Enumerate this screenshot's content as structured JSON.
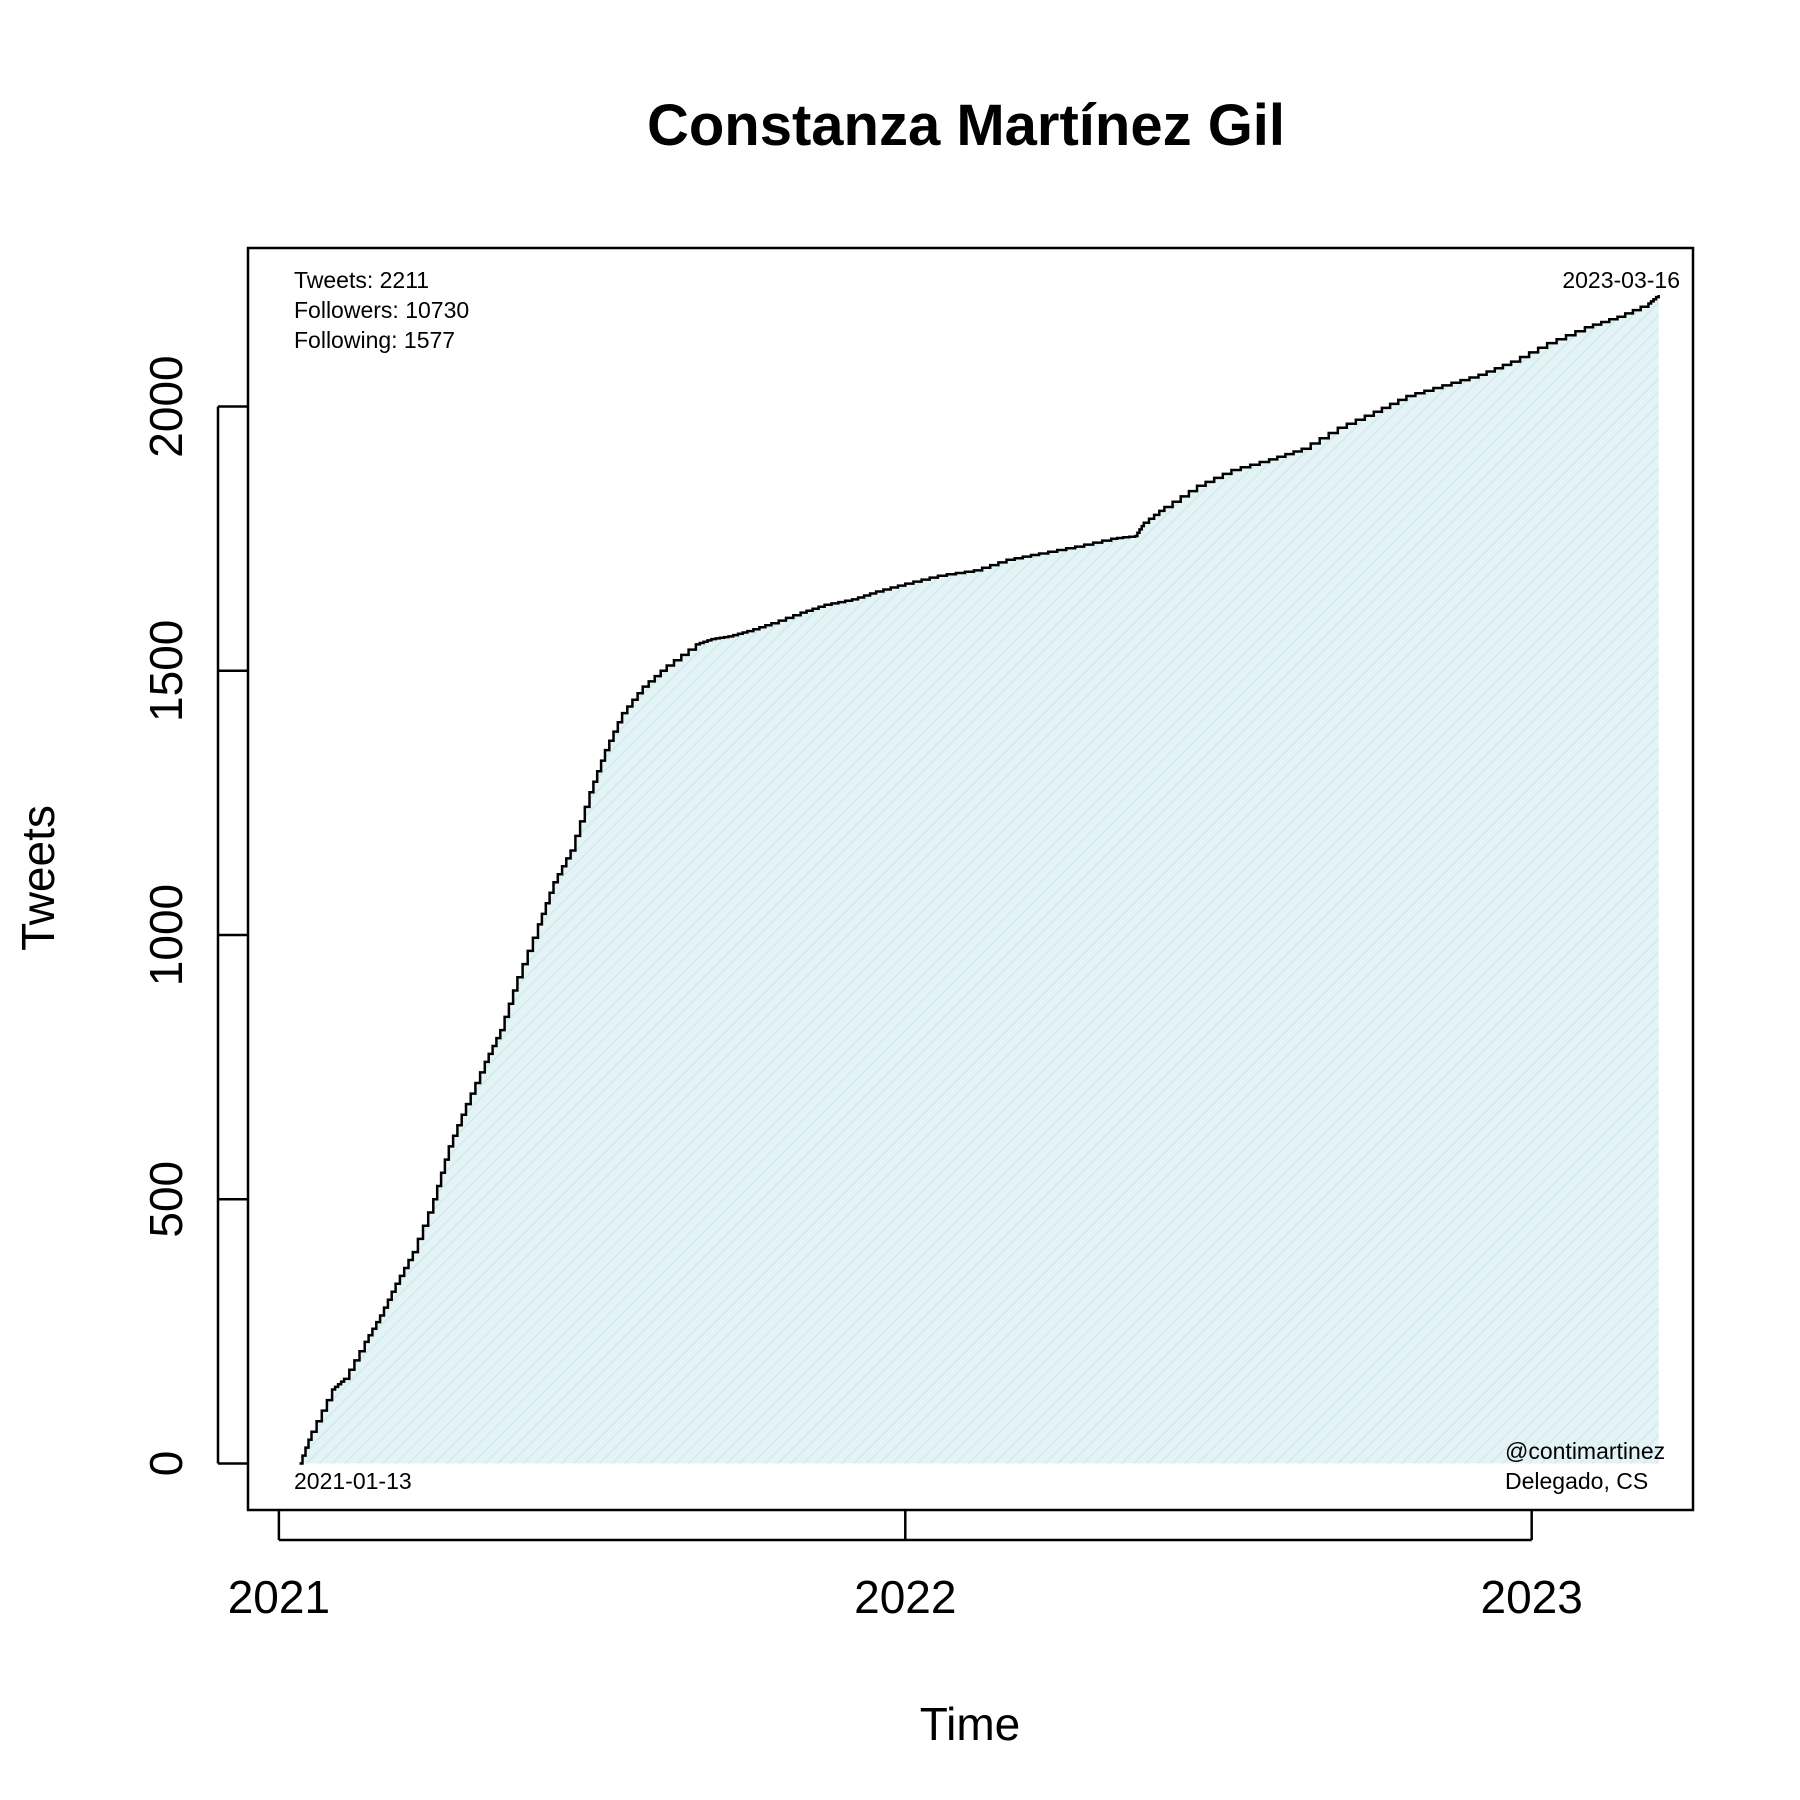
{
  "chart_data": {
    "type": "area",
    "title": "Constanza Martínez Gil",
    "xlabel": "Time",
    "ylabel": "Tweets",
    "x_ticks": [
      "2021",
      "2022",
      "2023"
    ],
    "y_ticks": [
      0,
      500,
      1000,
      1500,
      2000
    ],
    "xlim": [
      "2020-12-14",
      "2023-04-05"
    ],
    "ylim": [
      -88,
      2300
    ],
    "grid": false,
    "legend": "none",
    "colors": {
      "line": "#000000",
      "fill": "#e4f4f6",
      "hatch": "#d2eaed"
    },
    "annotations": {
      "stats": [
        "Tweets: 2211",
        "Followers: 10730",
        "Following: 1577"
      ],
      "start_date": "2021-01-13",
      "end_date": "2023-03-16",
      "handle": "@contimartinez",
      "role": "Delegado, CS"
    },
    "series": [
      {
        "x": [
          "2021-01-13",
          "2021-01-20",
          "2021-02-01",
          "2021-02-08",
          "2021-02-20",
          "2021-03-01",
          "2021-03-10",
          "2021-03-20",
          "2021-04-01",
          "2021-04-10",
          "2021-04-20",
          "2021-05-01",
          "2021-05-10",
          "2021-05-20",
          "2021-06-01",
          "2021-06-10",
          "2021-06-20",
          "2021-07-01",
          "2021-07-10",
          "2021-07-20",
          "2021-08-01",
          "2021-08-15",
          "2021-09-01",
          "2021-09-10",
          "2021-09-20",
          "2021-10-01",
          "2021-10-15",
          "2021-11-01",
          "2021-11-15",
          "2021-12-01",
          "2021-12-15",
          "2022-01-01",
          "2022-01-20",
          "2022-02-10",
          "2022-03-01",
          "2022-03-20",
          "2022-04-10",
          "2022-05-01",
          "2022-05-15",
          "2022-05-20",
          "2022-06-01",
          "2022-06-20",
          "2022-07-10",
          "2022-08-01",
          "2022-08-20",
          "2022-09-10",
          "2022-10-01",
          "2022-10-20",
          "2022-11-10",
          "2022-12-01",
          "2022-12-20",
          "2023-01-10",
          "2023-02-01",
          "2023-02-20",
          "2023-03-10",
          "2023-03-16"
        ],
        "y": [
          0,
          60,
          140,
          160,
          230,
          280,
          340,
          400,
          500,
          600,
          680,
          760,
          820,
          920,
          1020,
          1100,
          1160,
          1270,
          1350,
          1420,
          1470,
          1510,
          1550,
          1560,
          1565,
          1575,
          1590,
          1610,
          1625,
          1635,
          1650,
          1665,
          1680,
          1690,
          1710,
          1722,
          1735,
          1750,
          1755,
          1780,
          1810,
          1850,
          1880,
          1900,
          1920,
          1960,
          1990,
          2020,
          2040,
          2060,
          2085,
          2120,
          2150,
          2170,
          2195,
          2211
        ]
      }
    ]
  }
}
